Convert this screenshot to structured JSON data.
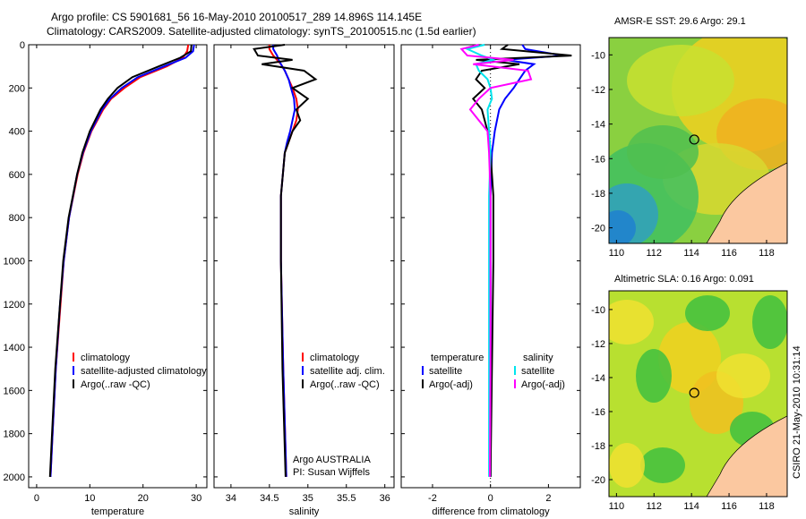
{
  "title_line1": "Argo profile: CS 5901681_56 16-May-2010 20100517_289 14.896S 114.145E",
  "title_line2": "Climatology: CARS2009. Satellite-adjusted climatology: synTS_20100515.nc (1.5d earlier)",
  "colors": {
    "clim": "#ff0000",
    "sat": "#0000ff",
    "argo": "#000000",
    "sat_s": "#00e5ee",
    "argo_s": "#ff00ff"
  },
  "chart_data": [
    {
      "type": "line",
      "name": "temperature-panel",
      "xlabel": "temperature",
      "ylabel": "",
      "xlim": [
        -1.5,
        32
      ],
      "ylim": [
        2050,
        0
      ],
      "xticks": [
        0,
        10,
        20,
        30
      ],
      "yticks": [
        0,
        200,
        400,
        600,
        800,
        1000,
        1200,
        1400,
        1600,
        1800,
        2000
      ],
      "legend": [
        "climatology",
        "satellite-adjusted climatology",
        "Argo(..raw -QC)"
      ],
      "depth": [
        0,
        30,
        60,
        100,
        150,
        200,
        250,
        300,
        400,
        500,
        600,
        800,
        1000,
        1200,
        1500,
        1800,
        2000
      ],
      "series": [
        {
          "name": "climatology",
          "color": "clim",
          "values": [
            28.5,
            28.3,
            27.5,
            24.5,
            19.5,
            16.5,
            14,
            12.5,
            10.3,
            8.8,
            7.7,
            6.1,
            5.1,
            4.5,
            3.6,
            3,
            2.6
          ]
        },
        {
          "name": "satellite-adjusted climatology",
          "color": "sat",
          "values": [
            29.6,
            29.4,
            28,
            24,
            19,
            16,
            13.8,
            12.3,
            10.2,
            8.7,
            7.6,
            6.1,
            5.1,
            4.4,
            3.6,
            3,
            2.6
          ]
        },
        {
          "name": "Argo(..raw -QC)",
          "color": "argo",
          "values": [
            29.1,
            29,
            27,
            23,
            18,
            15.2,
            13.4,
            12,
            10,
            8.6,
            7.6,
            6,
            5,
            4.4,
            3.5,
            2.9,
            2.5
          ]
        }
      ]
    },
    {
      "type": "line",
      "name": "salinity-panel",
      "xlabel": "salinity",
      "xlim": [
        33.78,
        36.12
      ],
      "ylim": [
        2050,
        0
      ],
      "xticks": [
        34,
        34.5,
        35,
        35.5,
        36
      ],
      "legend": [
        "climatology",
        "satellite adj. clim.",
        "Argo(..raw -QC)"
      ],
      "annotation": [
        "Argo AUSTRALIA",
        "PI: Susan Wijffels"
      ],
      "depth": [
        0,
        20,
        50,
        70,
        90,
        120,
        160,
        200,
        250,
        300,
        350,
        400,
        450,
        500,
        700,
        1000,
        1500,
        2000
      ],
      "series": [
        {
          "name": "climatology",
          "color": "clim",
          "values": [
            34.5,
            34.5,
            34.55,
            34.6,
            34.65,
            34.7,
            34.75,
            34.8,
            34.85,
            34.87,
            34.85,
            34.8,
            34.75,
            34.7,
            34.65,
            34.65,
            34.68,
            34.72
          ]
        },
        {
          "name": "satellite adj. clim.",
          "color": "sat",
          "values": [
            34.55,
            34.55,
            34.6,
            34.62,
            34.65,
            34.7,
            34.75,
            34.78,
            34.82,
            34.83,
            34.8,
            34.77,
            34.73,
            34.7,
            34.65,
            34.65,
            34.68,
            34.72
          ]
        },
        {
          "name": "Argo(..raw -QC)",
          "color": "argo",
          "values": [
            34.7,
            34.3,
            34.35,
            34.8,
            34.4,
            34.95,
            35.1,
            34.8,
            35.0,
            34.85,
            34.9,
            34.8,
            34.75,
            34.7,
            34.65,
            34.65,
            34.67,
            34.71
          ]
        }
      ]
    },
    {
      "type": "line",
      "name": "difference-panel",
      "xlabel": "difference from climatology",
      "xlim": [
        -3.08,
        3.1
      ],
      "ylim": [
        2050,
        0
      ],
      "xticks": [
        -2,
        0,
        2
      ],
      "legend_t": [
        "temperature",
        "satellite",
        "Argo(-adj)"
      ],
      "legend_s": [
        "salinity",
        "satellite",
        "Argo(-adj)"
      ],
      "depth": [
        0,
        20,
        50,
        70,
        90,
        120,
        160,
        200,
        250,
        300,
        400,
        500,
        700,
        1000,
        1500,
        2000
      ],
      "series": [
        {
          "name": "temperature satellite",
          "color": "sat",
          "values": [
            1.1,
            1.2,
            2.5,
            0.5,
            1.5,
            1.2,
            1,
            0.8,
            0.5,
            0.3,
            0.15,
            0.05,
            0,
            0,
            0,
            0
          ]
        },
        {
          "name": "temperature Argo(-adj)",
          "color": "argo",
          "values": [
            0.6,
            0.4,
            2.8,
            -0.5,
            1.0,
            -0.3,
            -0.5,
            -0.2,
            -0.6,
            -0.3,
            -0.1,
            0,
            0.1,
            0.1,
            0.05,
            0
          ]
        },
        {
          "name": "salinity satellite",
          "color": "sat_s",
          "values": [
            -0.2,
            -0.8,
            -0.3,
            0.1,
            -0.5,
            -0.4,
            -0.1,
            0,
            0.05,
            -0.1,
            -0.05,
            0,
            -0.05,
            -0.05,
            -0.05,
            -0.05
          ]
        },
        {
          "name": "salinity Argo(-adj)",
          "color": "argo_s",
          "values": [
            -0.4,
            -1.0,
            -0.8,
            0.8,
            -0.6,
            1.3,
            1.4,
            0,
            -0.4,
            -0.7,
            -0.1,
            -0.05,
            0,
            0,
            0,
            -0.02
          ]
        }
      ]
    },
    {
      "type": "heatmap",
      "name": "sst-map",
      "title": "AMSR-E SST: 29.6 Argo: 29.1",
      "xticks": [
        110,
        112,
        114,
        116,
        118
      ],
      "yticks": [
        -10,
        -12,
        -14,
        -16,
        -18,
        -20
      ],
      "xlim": [
        109.6,
        119.1
      ],
      "ylim": [
        -20.9,
        -9.0
      ],
      "argo_position": [
        114.145,
        -14.896
      ]
    },
    {
      "type": "heatmap",
      "name": "sla-map",
      "title": "Altimetric SLA: 0.16 Argo: 0.091",
      "xticks": [
        110,
        112,
        114,
        116,
        118
      ],
      "yticks": [
        -10,
        -12,
        -14,
        -16,
        -18,
        -20
      ],
      "xlim": [
        109.6,
        119.1
      ],
      "ylim": [
        -21.0,
        -8.9
      ],
      "argo_position": [
        114.145,
        -14.896
      ]
    }
  ],
  "footer": "CSIRO 21-May-2010 10:31:14"
}
